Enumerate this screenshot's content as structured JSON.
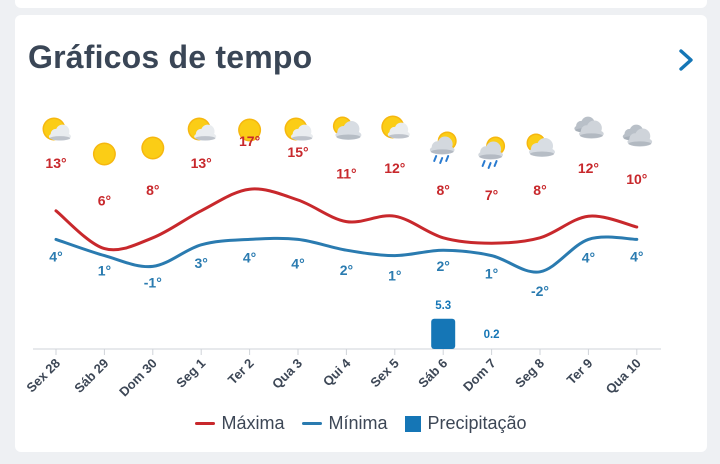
{
  "header": {
    "title": "Gráficos de tempo"
  },
  "colors": {
    "max": "#c8282c",
    "min": "#2a7bb0",
    "precip": "#1576b6",
    "axis_text": "#3d4756"
  },
  "legend": {
    "max_label": "Máxima",
    "min_label": "Mínima",
    "precip_label": "Precipitação"
  },
  "icons": [
    "partly-sunny",
    "sun",
    "sun",
    "partly-sunny",
    "sun",
    "partly-sunny",
    "partly-cloudy",
    "partly-sunny",
    "sun-cloud-rain",
    "sun-cloud-rain",
    "partly-cloudy",
    "cloudy",
    "cloudy"
  ],
  "chart_data": {
    "type": "line",
    "categories": [
      "Sex 28",
      "Sáb 29",
      "Dom 30",
      "Seg 1",
      "Ter 2",
      "Qua 3",
      "Qui 4",
      "Sex 5",
      "Sáb 6",
      "Dom 7",
      "Seg 8",
      "Ter 9",
      "Qua 10"
    ],
    "series": [
      {
        "name": "Máxima",
        "values": [
          13,
          6,
          8,
          13,
          17,
          15,
          11,
          12,
          8,
          7,
          8,
          12,
          10
        ],
        "labels": [
          "13°",
          "6°",
          "8°",
          "13°",
          "17°",
          "15°",
          "11°",
          "12°",
          "8°",
          "7°",
          "8°",
          "12°",
          "10°"
        ]
      },
      {
        "name": "Mínima",
        "values": [
          4,
          1,
          -1,
          3,
          4,
          4,
          2,
          1,
          2,
          1,
          -2,
          4,
          4
        ],
        "labels": [
          "4°",
          "1°",
          "-1°",
          "3°",
          "4°",
          "4°",
          "2°",
          "1°",
          "2°",
          "1°",
          "-2°",
          "4°",
          "4°"
        ]
      },
      {
        "name": "Precipitação",
        "values": [
          0,
          0,
          0,
          0,
          0,
          0,
          0,
          0,
          5.3,
          0.2,
          0,
          0,
          0
        ],
        "labels": [
          "",
          "",
          "",
          "",
          "",
          "",
          "",
          "",
          "5.3",
          "0.2",
          "",
          "",
          ""
        ]
      }
    ]
  }
}
